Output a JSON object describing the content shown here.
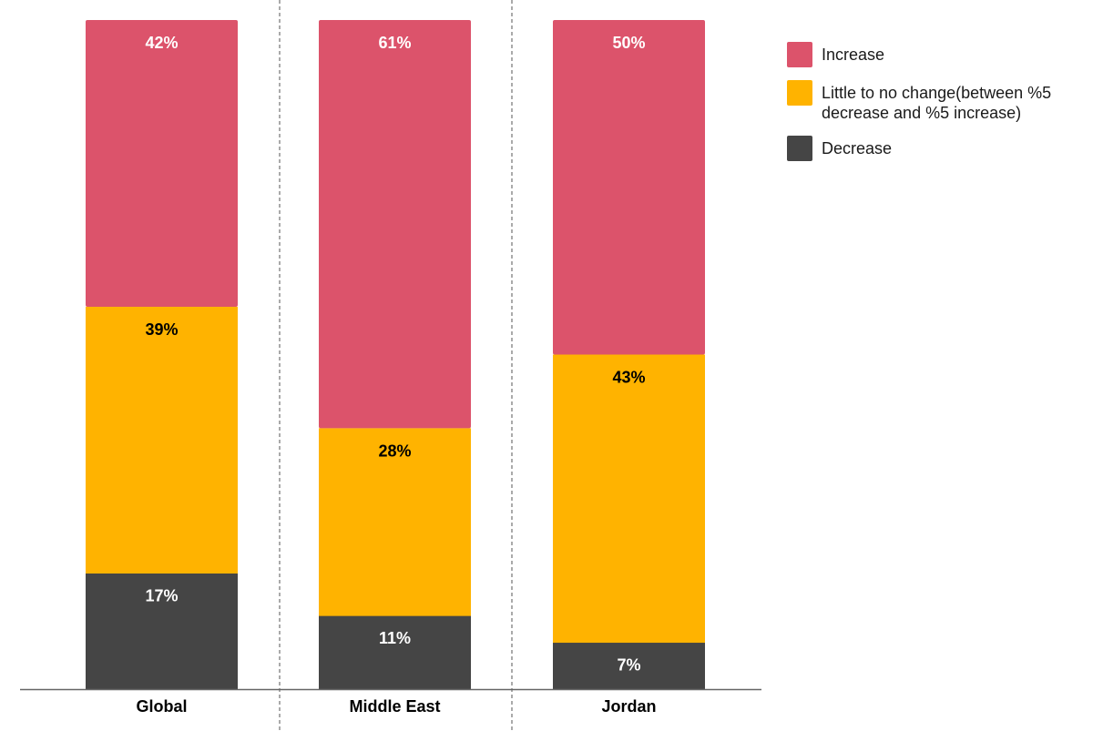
{
  "chart_data": {
    "type": "bar",
    "stacked": true,
    "normalized": true,
    "categories": [
      "Global",
      "Middle East",
      "Jordan"
    ],
    "series": [
      {
        "name": "Decrease",
        "color": "#454545",
        "label_color": "#ffffff",
        "values": [
          17,
          11,
          7
        ],
        "labels": [
          "17%",
          "11%",
          "7%"
        ]
      },
      {
        "name": "Little to no change(between %5 decrease and %5 increase)",
        "color": "#FFB300",
        "label_color": "#000000",
        "values": [
          39,
          28,
          43
        ],
        "labels": [
          "39%",
          "28%",
          "43%"
        ]
      },
      {
        "name": "Increase",
        "color": "#DC536B",
        "label_color": "#ffffff",
        "values": [
          42,
          61,
          50
        ],
        "labels": [
          "42%",
          "61%",
          "50%"
        ]
      }
    ],
    "legend": {
      "position": "top-right",
      "items": [
        {
          "label": "Increase",
          "color": "#DC536B"
        },
        {
          "label": "Little to no change(between %5 decrease and %5 increase)",
          "color": "#FFB300"
        },
        {
          "label": "Decrease",
          "color": "#454545"
        }
      ]
    },
    "ylim": [
      0,
      100
    ],
    "grid": false,
    "category_separators": "dashed"
  }
}
